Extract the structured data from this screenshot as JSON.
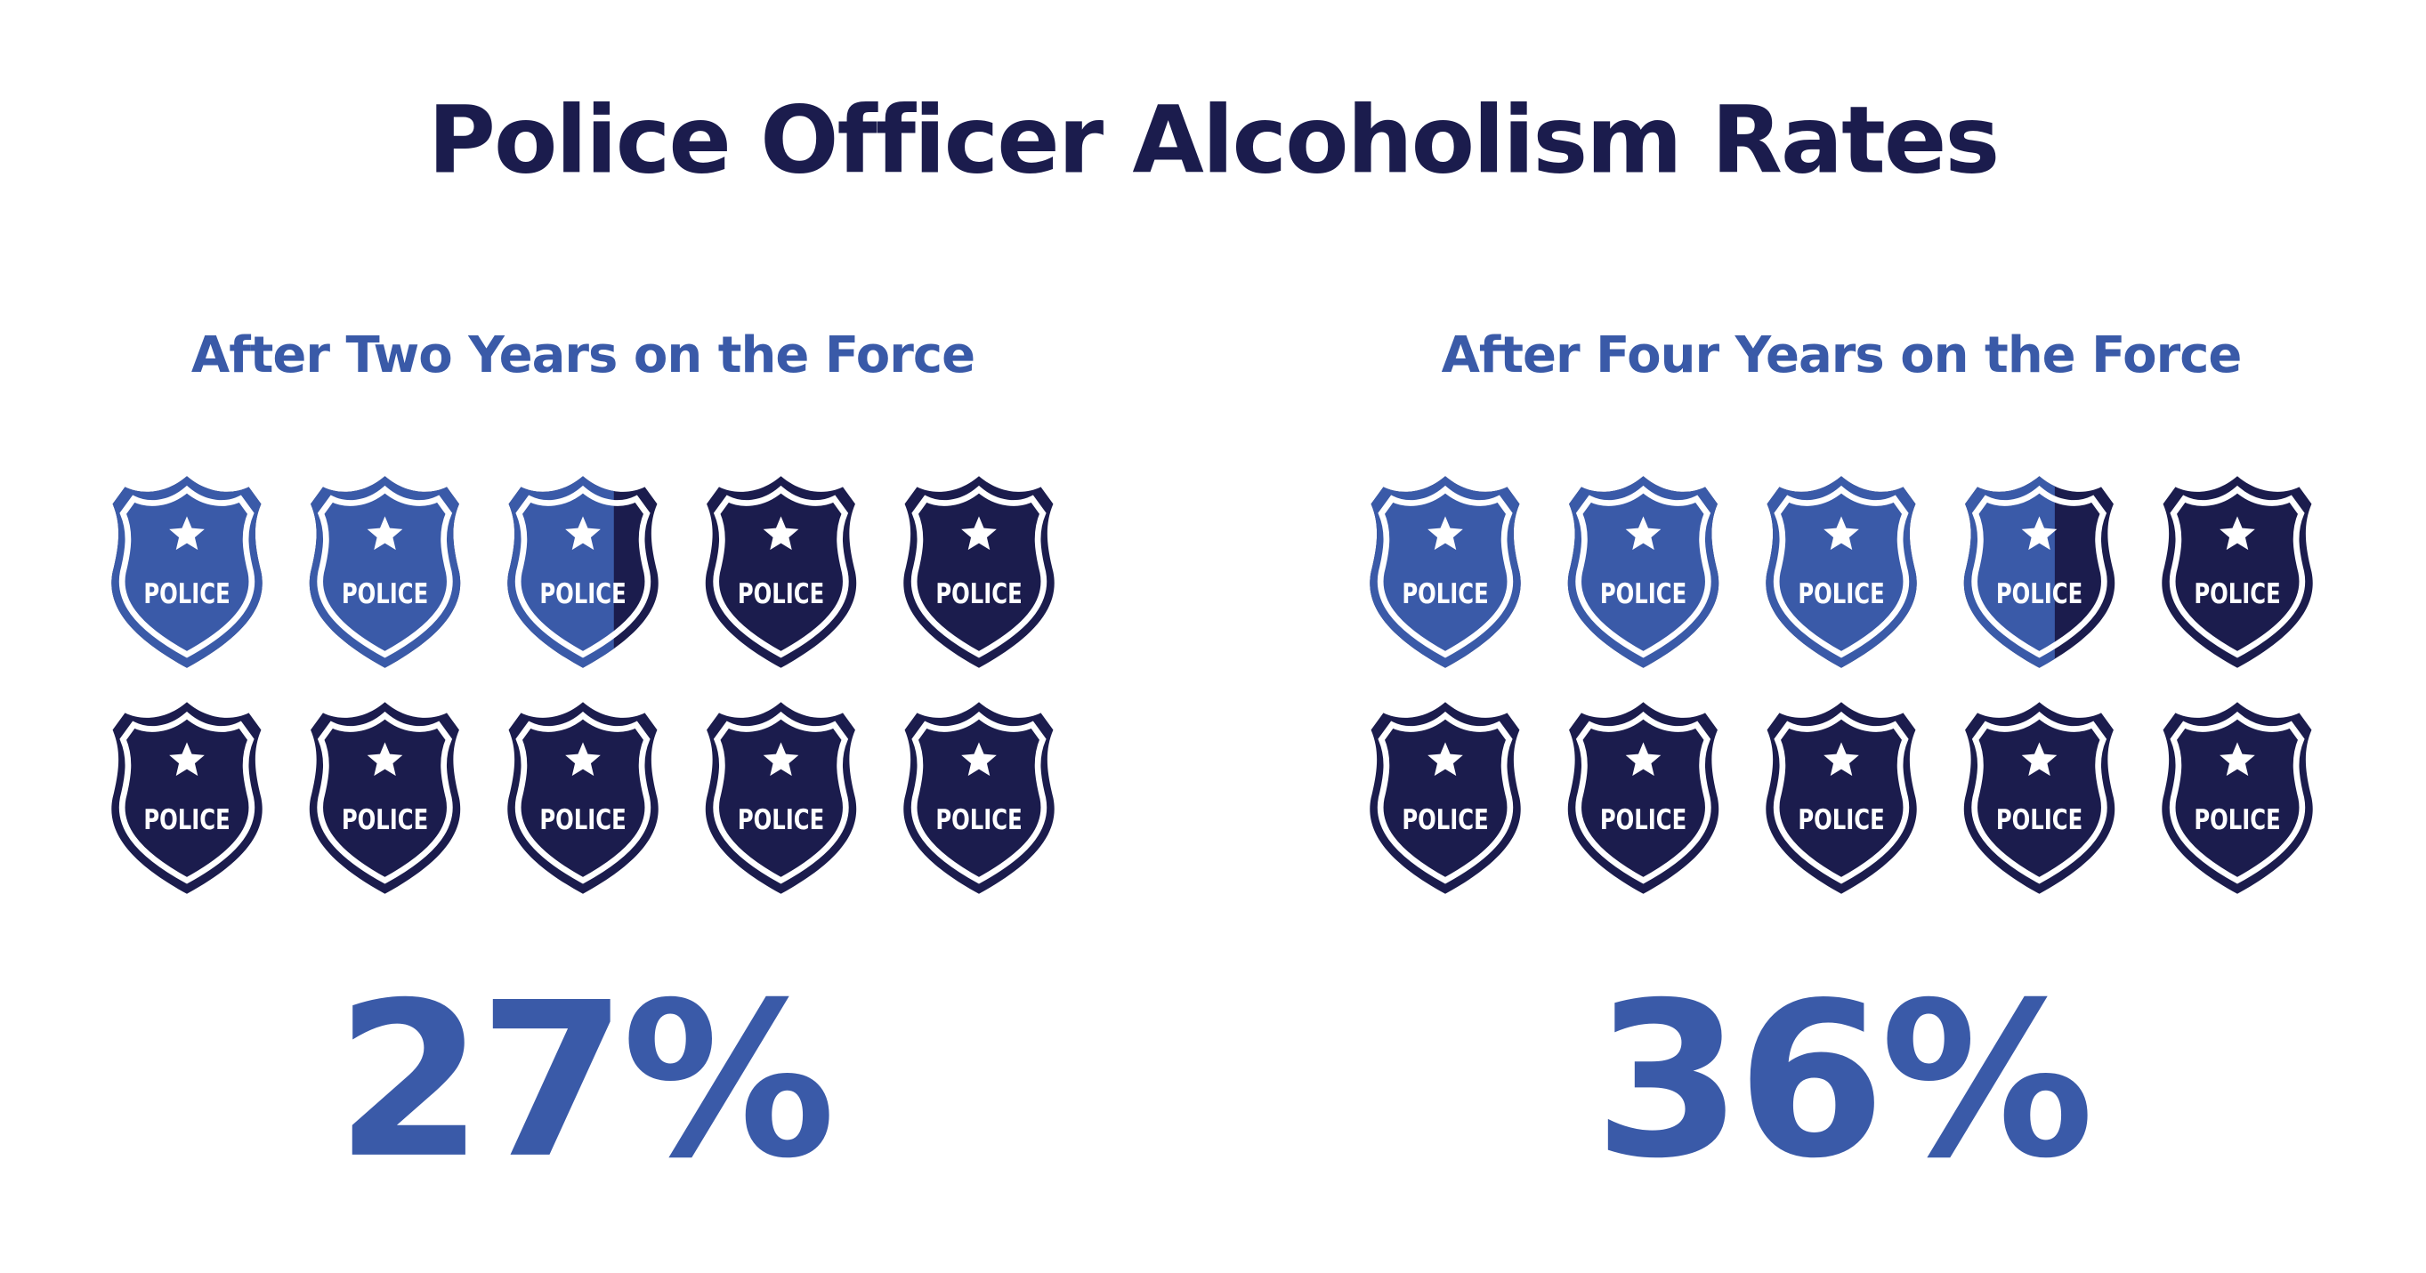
{
  "title": "Police Officer Alcoholism Rates",
  "chart_data": [
    {
      "type": "pictogram",
      "title": "After Two Years on the Force",
      "value": 27,
      "value_label": "27%",
      "icon_label": "POLICE",
      "icon_count": 10,
      "ylim": [
        0,
        100
      ],
      "color": "#3a5aa8",
      "empty_color": "#1b1c4d"
    },
    {
      "type": "pictogram",
      "title": "After Four Years on the Force",
      "value": 36,
      "value_label": "36%",
      "icon_label": "POLICE",
      "icon_count": 10,
      "ylim": [
        0,
        100
      ],
      "color": "#3a5aa8",
      "empty_color": "#1b1c4d"
    }
  ]
}
